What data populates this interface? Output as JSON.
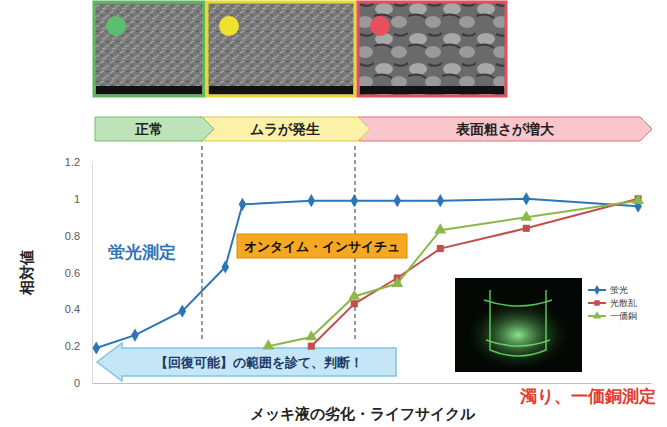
{
  "chart_data": {
    "type": "line",
    "ylabel": "相対値",
    "xlabel": "メッキ液の劣化・ライフサイクル",
    "stages": [
      "正常",
      "ムラが発生",
      "表面粗さが増大"
    ],
    "annotations": [
      "蛍光測定",
      "オンタイム・インサイチュ",
      "【回復可能】の範囲を診て、判断！",
      "濁り、一価銅測定"
    ],
    "xlim": [
      -0.1,
      12.9
    ],
    "xticks": [],
    "ylim": [
      0,
      1.2
    ],
    "yticks": [
      0,
      0.2,
      0.4,
      0.6,
      0.8,
      1,
      1.2
    ],
    "grid": false,
    "legend": "right",
    "tick_labels": "y",
    "series": [
      {
        "name": "蛍光",
        "color": "#2e75b6",
        "marker": "diamond",
        "line_style": "solid",
        "x": [
          0,
          0.9,
          2,
          3,
          3.4,
          5,
          6,
          7,
          8,
          10,
          12.6
        ],
        "values": [
          0.19,
          0.26,
          0.39,
          0.63,
          0.97,
          0.99,
          0.99,
          0.99,
          0.99,
          1.0,
          0.96
        ]
      },
      {
        "name": "光散乱",
        "color": "#c0504d",
        "marker": "square",
        "line_style": "solid",
        "x": [
          5,
          6,
          7,
          8,
          10,
          12.6
        ],
        "values": [
          0.2,
          0.43,
          0.57,
          0.73,
          0.84,
          1.0
        ]
      },
      {
        "name": "一価銅",
        "color": "#8cb84a",
        "marker": "triangle",
        "line_style": "solid",
        "x": [
          4,
          5,
          6,
          7,
          8,
          10,
          12.6
        ],
        "values": [
          0.2,
          0.25,
          0.47,
          0.54,
          0.83,
          0.9,
          0.99
        ]
      }
    ]
  }
}
